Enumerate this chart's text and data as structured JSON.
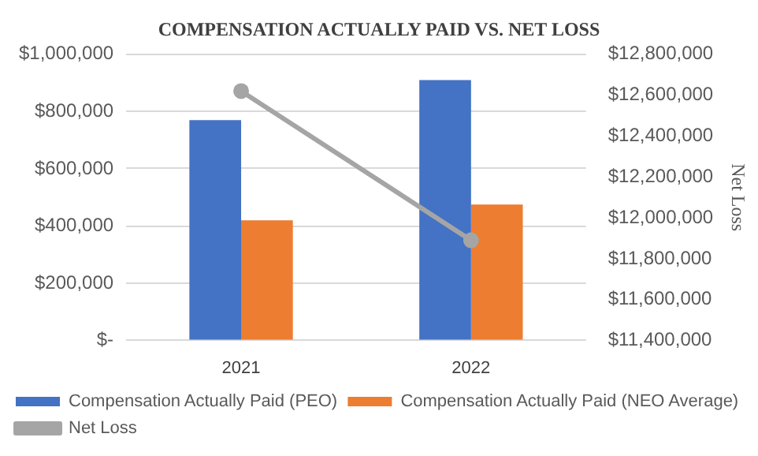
{
  "chart_data": {
    "type": "bar",
    "title": "COMPENSATION ACTUALLY PAID VS. NET LOSS",
    "y2label": "Net Loss",
    "categories": [
      "2021",
      "2022"
    ],
    "series": [
      {
        "name": "Compensation Actually Paid (PEO)",
        "color": "#4472c4",
        "values": [
          770000,
          910000
        ]
      },
      {
        "name": "Compensation Actually Paid (NEO Average)",
        "color": "#ed7d31",
        "values": [
          420000,
          475000
        ]
      },
      {
        "name": "Net Loss",
        "type": "line",
        "axis": "y2",
        "color": "#a5a5a5",
        "values": [
          12620000,
          11890000
        ]
      }
    ],
    "ylim": [
      0,
      1000000
    ],
    "yticks": [
      {
        "value": 0,
        "label": "$-"
      },
      {
        "value": 200000,
        "label": "$200,000"
      },
      {
        "value": 400000,
        "label": "$400,000"
      },
      {
        "value": 600000,
        "label": "$600,000"
      },
      {
        "value": 800000,
        "label": "$800,000"
      },
      {
        "value": 1000000,
        "label": "$1,000,000"
      }
    ],
    "y2lim": [
      11400000,
      12800000
    ],
    "y2ticks": [
      {
        "value": 11400000,
        "label": "$11,400,000"
      },
      {
        "value": 11600000,
        "label": "$11,600,000"
      },
      {
        "value": 11800000,
        "label": "$11,800,000"
      },
      {
        "value": 12000000,
        "label": "$12,000,000"
      },
      {
        "value": 12200000,
        "label": "$12,200,000"
      },
      {
        "value": 12400000,
        "label": "$12,400,000"
      },
      {
        "value": 12600000,
        "label": "$12,600,000"
      },
      {
        "value": 12800000,
        "label": "$12,800,000"
      }
    ],
    "grid": "y",
    "legend": "bottom",
    "marker": "circle"
  }
}
